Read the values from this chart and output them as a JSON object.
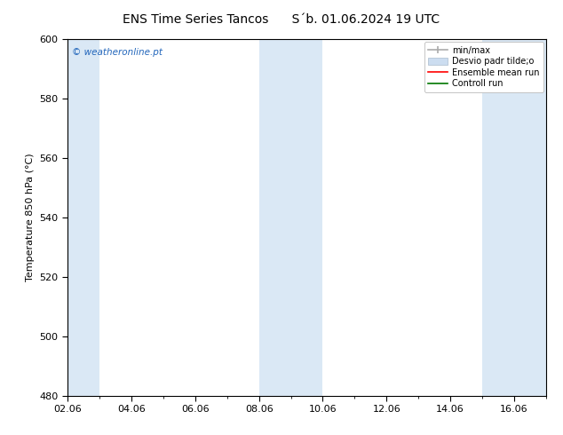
{
  "title_left": "ENS Time Series Tancos",
  "title_right": "S´b. 01.06.2024 19 UTC",
  "ylabel": "Temperature 850 hPa (°C)",
  "ylim": [
    480,
    600
  ],
  "yticks": [
    480,
    500,
    520,
    540,
    560,
    580,
    600
  ],
  "xtick_positions": [
    0,
    2,
    4,
    6,
    8,
    10,
    12,
    14
  ],
  "xtick_labels": [
    "02.06",
    "04.06",
    "06.06",
    "08.06",
    "10.06",
    "12.06",
    "14.06",
    "16.06"
  ],
  "total_days": 15,
  "bg_color": "#ffffff",
  "plot_bg_color": "#ffffff",
  "shaded_bands": [
    {
      "xmin": 0,
      "xmax": 1.0,
      "color": "#dae8f5"
    },
    {
      "xmin": 6,
      "xmax": 8.0,
      "color": "#dae8f5"
    },
    {
      "xmin": 13,
      "xmax": 15.0,
      "color": "#dae8f5"
    }
  ],
  "watermark_text": "© weatheronline.pt",
  "watermark_color": "#2266bb",
  "legend_minmax_color": "#aaaaaa",
  "legend_desvio_color": "#ccddf0",
  "legend_ensemble_color": "#ff0000",
  "legend_controll_color": "#007700",
  "title_fontsize": 10,
  "tick_fontsize": 8,
  "label_fontsize": 8,
  "legend_fontsize": 7
}
